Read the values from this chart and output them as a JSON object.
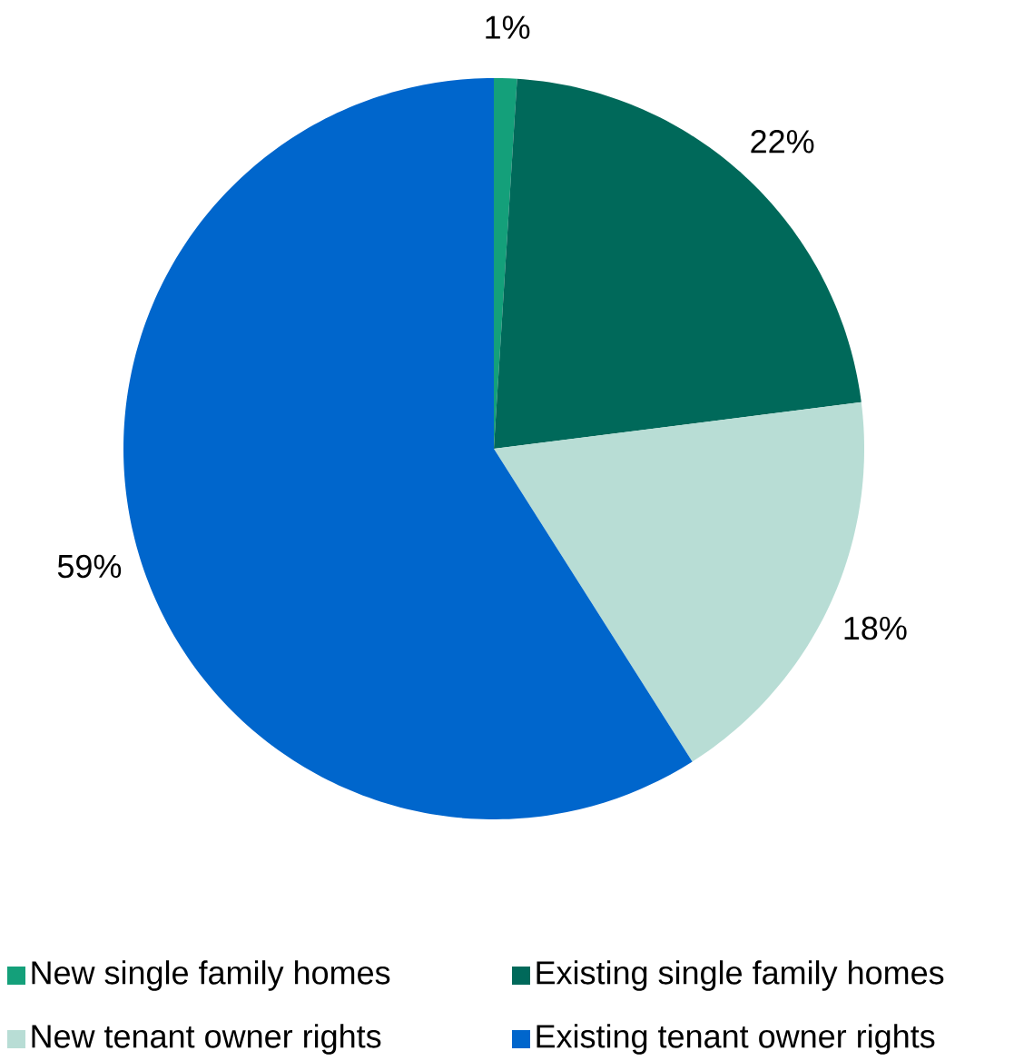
{
  "chart_data": {
    "type": "pie",
    "categories": [
      "New single family homes",
      "Existing single family homes",
      "New tenant owner rights",
      "Existing tenant owner rights"
    ],
    "values": [
      1,
      22,
      18,
      59
    ],
    "colors": [
      "#14a07a",
      "#00695a",
      "#b8ddd5",
      "#0066cc"
    ],
    "value_labels": [
      "1%",
      "22%",
      "18%",
      "59%"
    ],
    "legend": "bottom"
  }
}
